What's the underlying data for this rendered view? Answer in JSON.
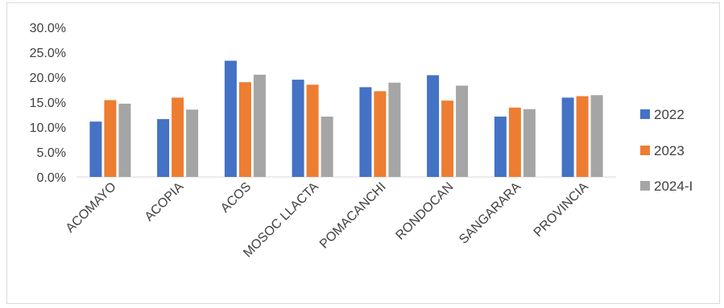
{
  "chart_data": {
    "type": "bar",
    "title": "",
    "xlabel": "",
    "ylabel": "",
    "categories": [
      "ACOMAYO",
      "ACOPIA",
      "ACOS",
      "MOSOC LLACTA",
      "POMACANCHI",
      "RONDOCAN",
      "SANGARARA",
      "PROVINCIA"
    ],
    "series": [
      {
        "name": "2022",
        "color": "#4472C4",
        "values": [
          11.1,
          11.6,
          23.3,
          19.5,
          18.0,
          20.4,
          12.1,
          15.9
        ]
      },
      {
        "name": "2023",
        "color": "#ED7D31",
        "values": [
          15.4,
          15.9,
          19.0,
          18.5,
          17.2,
          15.3,
          13.9,
          16.2
        ]
      },
      {
        "name": "2024-I",
        "color": "#A5A5A5",
        "values": [
          14.7,
          13.5,
          20.5,
          12.1,
          18.9,
          18.3,
          13.6,
          16.4
        ]
      }
    ],
    "ylim": [
      0,
      30
    ],
    "yticks": [
      "0.0%",
      "5.0%",
      "10.0%",
      "15.0%",
      "20.0%",
      "25.0%",
      "30.0%"
    ],
    "grid": false,
    "legend_position": "right"
  }
}
